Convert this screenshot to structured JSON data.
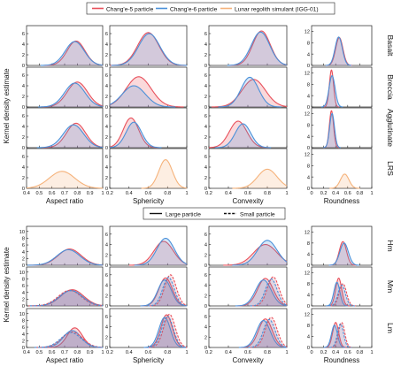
{
  "legend_top": {
    "items": [
      {
        "label": "Chang'e-5 particle",
        "color": "#e8505b"
      },
      {
        "label": "Chang'e-6 particle",
        "color": "#4a90d9"
      },
      {
        "label": "Lunar regolith simulant (IGG-01)",
        "color": "#f5b27a"
      }
    ]
  },
  "legend_bottom": {
    "items": [
      {
        "label": "Large particle",
        "style": "solid"
      },
      {
        "label": "Small particle",
        "style": "dashed"
      }
    ]
  },
  "chart_data": {
    "type": "area",
    "grid": false,
    "top_panel": {
      "ylabel": "Kernel density estimate",
      "columns": [
        {
          "xlabel": "Aspect ratio",
          "xlim": [
            0.4,
            1.0
          ],
          "xticks": [
            0.4,
            0.5,
            0.6,
            0.7,
            0.8,
            0.9,
            1.0
          ],
          "yticks": [
            0,
            2,
            4,
            6
          ],
          "ylim": [
            0,
            7.5
          ]
        },
        {
          "xlabel": "Sphericity",
          "xlim": [
            0.2,
            1.0
          ],
          "xticks": [
            0.2,
            0.4,
            0.6,
            0.8,
            1.0
          ],
          "yticks": [
            0,
            2,
            4,
            6
          ],
          "ylim": [
            0,
            7.5
          ]
        },
        {
          "xlabel": "Convexity",
          "xlim": [
            0.2,
            1.0
          ],
          "xticks": [
            0.2,
            0.4,
            0.6,
            0.8,
            1.0
          ],
          "yticks": [
            0,
            2,
            4,
            6
          ],
          "ylim": [
            0,
            7.5
          ]
        },
        {
          "xlabel": "Roundness",
          "xlim": [
            0.0,
            1.0
          ],
          "xticks": [
            0.0,
            0.2,
            0.4,
            0.6,
            0.8,
            1.0
          ],
          "yticks": [
            0,
            4,
            8,
            12
          ],
          "ylim": [
            0,
            14
          ]
        }
      ],
      "rows": [
        {
          "name": "Basalt",
          "series": [
            {
              "name": "Chang'e-5 particle",
              "curves": [
                [
                  0.79,
                  0.07,
                  4.6
                ],
                [
                  0.6,
                  0.11,
                  6.2
                ],
                [
                  0.74,
                  0.09,
                  6.5
                ],
                [
                  0.46,
                  0.06,
                  9.8
                ]
              ]
            },
            {
              "name": "Chang'e-6 particle",
              "curves": [
                [
                  0.78,
                  0.075,
                  4.5
                ],
                [
                  0.61,
                  0.11,
                  6.0
                ],
                [
                  0.73,
                  0.095,
                  6.3
                ],
                [
                  0.45,
                  0.06,
                  10.0
                ]
              ]
            }
          ]
        },
        {
          "name": "Breccia",
          "series": [
            {
              "name": "Chang'e-5 particle",
              "curves": [
                [
                  0.8,
                  0.08,
                  4.7
                ],
                [
                  0.5,
                  0.13,
                  5.7
                ],
                [
                  0.66,
                  0.12,
                  5.2
                ],
                [
                  0.33,
                  0.035,
                  13.0
                ]
              ]
            },
            {
              "name": "Chang'e-6 particle",
              "curves": [
                [
                  0.78,
                  0.08,
                  4.5
                ],
                [
                  0.45,
                  0.12,
                  4.0
                ],
                [
                  0.62,
                  0.09,
                  5.6
                ],
                [
                  0.34,
                  0.05,
                  11.0
                ]
              ]
            }
          ]
        },
        {
          "name": "Agglutinate",
          "series": [
            {
              "name": "Chang'e-5 particle",
              "curves": [
                [
                  0.79,
                  0.075,
                  4.6
                ],
                [
                  0.42,
                  0.08,
                  5.6
                ],
                [
                  0.5,
                  0.09,
                  5.0
                ],
                [
                  0.33,
                  0.035,
                  13.0
                ]
              ]
            },
            {
              "name": "Chang'e-6 particle",
              "curves": [
                [
                  0.77,
                  0.08,
                  4.3
                ],
                [
                  0.45,
                  0.08,
                  4.8
                ],
                [
                  0.55,
                  0.08,
                  4.5
                ],
                [
                  0.34,
                  0.04,
                  12.0
                ]
              ]
            }
          ]
        },
        {
          "name": "LRS",
          "series": [
            {
              "name": "Lunar regolith simulant (IGG-01)",
              "curves": [
                [
                  0.68,
                  0.1,
                  3.2
                ],
                [
                  0.78,
                  0.07,
                  5.4
                ],
                [
                  0.8,
                  0.1,
                  3.6
                ],
                [
                  0.55,
                  0.07,
                  5.0
                ]
              ]
            }
          ]
        }
      ]
    },
    "bottom_panel": {
      "ylabel": "Kernel density estimate",
      "columns": [
        {
          "xlabel": "Aspect ratio",
          "xlim": [
            0.4,
            1.0
          ],
          "xticks": [
            0.4,
            0.5,
            0.6,
            0.7,
            0.8,
            0.9,
            1.0
          ],
          "yticks": [
            0,
            2,
            4,
            6,
            8,
            10
          ],
          "ylim": [
            0,
            11.5
          ]
        },
        {
          "xlabel": "Sphericity",
          "xlim": [
            0.2,
            1.0
          ],
          "xticks": [
            0.2,
            0.4,
            0.6,
            0.8,
            1.0
          ],
          "yticks": [
            0,
            2,
            4,
            6
          ],
          "ylim": [
            0,
            7.5
          ]
        },
        {
          "xlabel": "Convexity",
          "xlim": [
            0.2,
            1.0
          ],
          "xticks": [
            0.2,
            0.4,
            0.6,
            0.8,
            1.0
          ],
          "yticks": [
            0,
            2,
            4,
            6
          ],
          "ylim": [
            0,
            7.5
          ]
        },
        {
          "xlabel": "Roundness",
          "xlim": [
            0.0,
            1.0
          ],
          "xticks": [
            0.0,
            0.2,
            0.4,
            0.6,
            0.8,
            1.0
          ],
          "yticks": [
            0,
            4,
            8,
            12
          ],
          "ylim": [
            0,
            14
          ]
        }
      ],
      "rows": [
        {
          "name": "Hm",
          "series": [
            {
              "name": "Chang'e-5 particle",
              "style": "solid",
              "curves": [
                [
                  0.74,
                  0.09,
                  4.8
                ],
                [
                  0.76,
                  0.1,
                  4.6
                ],
                [
                  0.78,
                  0.12,
                  4.0
                ],
                [
                  0.52,
                  0.06,
                  8.5
                ]
              ]
            },
            {
              "name": "Chang'e-6 particle",
              "style": "solid",
              "curves": [
                [
                  0.73,
                  0.09,
                  4.6
                ],
                [
                  0.78,
                  0.09,
                  5.2
                ],
                [
                  0.8,
                  0.1,
                  4.8
                ],
                [
                  0.54,
                  0.07,
                  8.0
                ]
              ]
            }
          ]
        },
        {
          "name": "Mm",
          "series": [
            {
              "name": "Chang'e-5 particle",
              "style": "solid",
              "curves": [
                [
                  0.76,
                  0.09,
                  4.8
                ],
                [
                  0.78,
                  0.07,
                  5.4
                ],
                [
                  0.78,
                  0.08,
                  5.3
                ],
                [
                  0.45,
                  0.05,
                  10.0
                ]
              ]
            },
            {
              "name": "Chang'e-6 particle",
              "style": "solid",
              "curves": [
                [
                  0.75,
                  0.09,
                  4.6
                ],
                [
                  0.77,
                  0.07,
                  5.0
                ],
                [
                  0.76,
                  0.08,
                  5.0
                ],
                [
                  0.42,
                  0.05,
                  8.5
                ]
              ]
            },
            {
              "name": "Chang'e-5 particle",
              "style": "dashed",
              "curves": [
                [
                  0.74,
                  0.09,
                  4.6
                ],
                [
                  0.83,
                  0.06,
                  6.0
                ],
                [
                  0.86,
                  0.06,
                  5.6
                ],
                [
                  0.52,
                  0.06,
                  8.0
                ]
              ]
            },
            {
              "name": "Chang'e-6 particle",
              "style": "dashed",
              "curves": [
                [
                  0.75,
                  0.09,
                  4.5
                ],
                [
                  0.81,
                  0.06,
                  5.5
                ],
                [
                  0.84,
                  0.06,
                  5.2
                ],
                [
                  0.5,
                  0.06,
                  7.5
                ]
              ]
            }
          ]
        },
        {
          "name": "Lm",
          "series": [
            {
              "name": "Chang'e-5 particle",
              "style": "solid",
              "curves": [
                [
                  0.78,
                  0.06,
                  5.8
                ],
                [
                  0.79,
                  0.06,
                  6.3
                ],
                [
                  0.78,
                  0.07,
                  5.5
                ],
                [
                  0.4,
                  0.05,
                  9.0
                ]
              ]
            },
            {
              "name": "Chang'e-6 particle",
              "style": "solid",
              "curves": [
                [
                  0.76,
                  0.07,
                  5.0
                ],
                [
                  0.77,
                  0.06,
                  5.8
                ],
                [
                  0.76,
                  0.07,
                  5.2
                ],
                [
                  0.38,
                  0.05,
                  8.0
                ]
              ]
            },
            {
              "name": "Chang'e-5 particle",
              "style": "dashed",
              "curves": [
                [
                  0.76,
                  0.08,
                  4.6
                ],
                [
                  0.82,
                  0.06,
                  6.4
                ],
                [
                  0.84,
                  0.06,
                  5.8
                ],
                [
                  0.5,
                  0.05,
                  9.0
                ]
              ]
            },
            {
              "name": "Chang'e-6 particle",
              "style": "dashed",
              "curves": [
                [
                  0.75,
                  0.08,
                  4.4
                ],
                [
                  0.8,
                  0.06,
                  6.0
                ],
                [
                  0.82,
                  0.06,
                  5.4
                ],
                [
                  0.48,
                  0.05,
                  8.5
                ]
              ]
            }
          ]
        }
      ]
    }
  }
}
